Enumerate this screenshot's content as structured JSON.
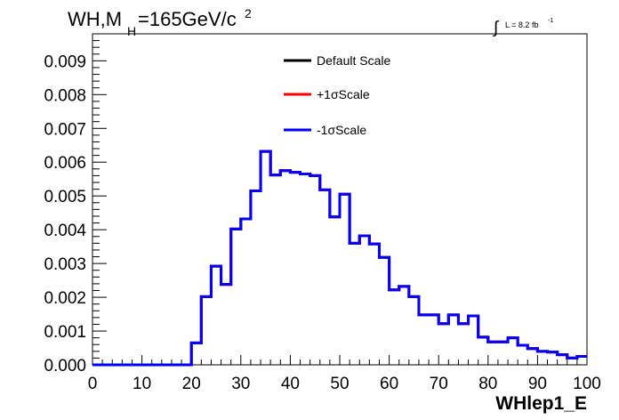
{
  "title": {
    "main": "WH,M",
    "sub": "H",
    "mass": "=165GeV/c",
    "sup": "2"
  },
  "lumi": {
    "integral": "∫",
    "text": "L = 8.2 fb",
    "sup": "-1"
  },
  "chart_data": {
    "type": "line",
    "xlabel": "WHlep1_E",
    "ylabel": "",
    "xlim": [
      0,
      100
    ],
    "ylim": [
      0,
      0.0098
    ],
    "x_ticks": [
      "0",
      "10",
      "20",
      "30",
      "40",
      "50",
      "60",
      "70",
      "80",
      "90",
      "100"
    ],
    "y_ticks": [
      "0.000",
      "0.001",
      "0.002",
      "0.003",
      "0.004",
      "0.005",
      "0.006",
      "0.007",
      "0.008",
      "0.009"
    ],
    "grid": false,
    "legend_position": "top-center",
    "bin_edges": [
      0,
      2,
      4,
      6,
      8,
      10,
      12,
      14,
      16,
      18,
      20,
      22,
      24,
      26,
      28,
      30,
      32,
      34,
      36,
      38,
      40,
      42,
      44,
      46,
      48,
      50,
      52,
      54,
      56,
      58,
      60,
      62,
      64,
      66,
      68,
      70,
      72,
      74,
      76,
      78,
      80,
      82,
      84,
      86,
      88,
      90,
      92,
      94,
      96,
      98,
      100
    ],
    "series": [
      {
        "name": "Default Scale",
        "color": "#000000",
        "values": [
          0,
          0,
          0,
          0,
          0,
          0,
          0,
          0,
          0,
          0,
          0.00065,
          0.00202,
          0.00292,
          0.00238,
          0.00402,
          0.00432,
          0.00515,
          0.00632,
          0.00562,
          0.00575,
          0.0057,
          0.00565,
          0.0056,
          0.00518,
          0.00438,
          0.00505,
          0.0036,
          0.00382,
          0.00358,
          0.00318,
          0.00222,
          0.00232,
          0.00202,
          0.00148,
          0.00148,
          0.00122,
          0.00148,
          0.00122,
          0.00145,
          0.00082,
          0.00068,
          0.00068,
          0.0008,
          0.00058,
          0.00048,
          0.0004,
          0.00038,
          0.0003,
          0.0002,
          0.00025
        ]
      },
      {
        "name": "+1σScale",
        "color": "#ff0000",
        "values": [
          0,
          0,
          0,
          0,
          0,
          0,
          0,
          0,
          0,
          0,
          0.00065,
          0.00202,
          0.00292,
          0.00238,
          0.00402,
          0.00432,
          0.00515,
          0.00632,
          0.00562,
          0.00575,
          0.0057,
          0.00565,
          0.0056,
          0.00518,
          0.00438,
          0.00505,
          0.0036,
          0.00382,
          0.00358,
          0.00318,
          0.00222,
          0.00232,
          0.00202,
          0.00148,
          0.00148,
          0.00122,
          0.00148,
          0.00122,
          0.00145,
          0.00082,
          0.00068,
          0.00068,
          0.0008,
          0.00058,
          0.00048,
          0.0004,
          0.00038,
          0.0003,
          0.0002,
          0.00025
        ]
      },
      {
        "name": "-1σScale",
        "color": "#0000ff",
        "values": [
          0,
          0,
          0,
          0,
          0,
          0,
          0,
          0,
          0,
          0,
          0.00065,
          0.00202,
          0.00292,
          0.00238,
          0.00402,
          0.00432,
          0.00515,
          0.00632,
          0.00562,
          0.00575,
          0.0057,
          0.00565,
          0.0056,
          0.00518,
          0.00438,
          0.00505,
          0.0036,
          0.00382,
          0.00358,
          0.00318,
          0.00222,
          0.00232,
          0.00202,
          0.00148,
          0.00148,
          0.00122,
          0.00148,
          0.00122,
          0.00145,
          0.00082,
          0.00068,
          0.00068,
          0.0008,
          0.00058,
          0.00048,
          0.0004,
          0.00038,
          0.0003,
          0.0002,
          0.00025
        ]
      }
    ]
  }
}
